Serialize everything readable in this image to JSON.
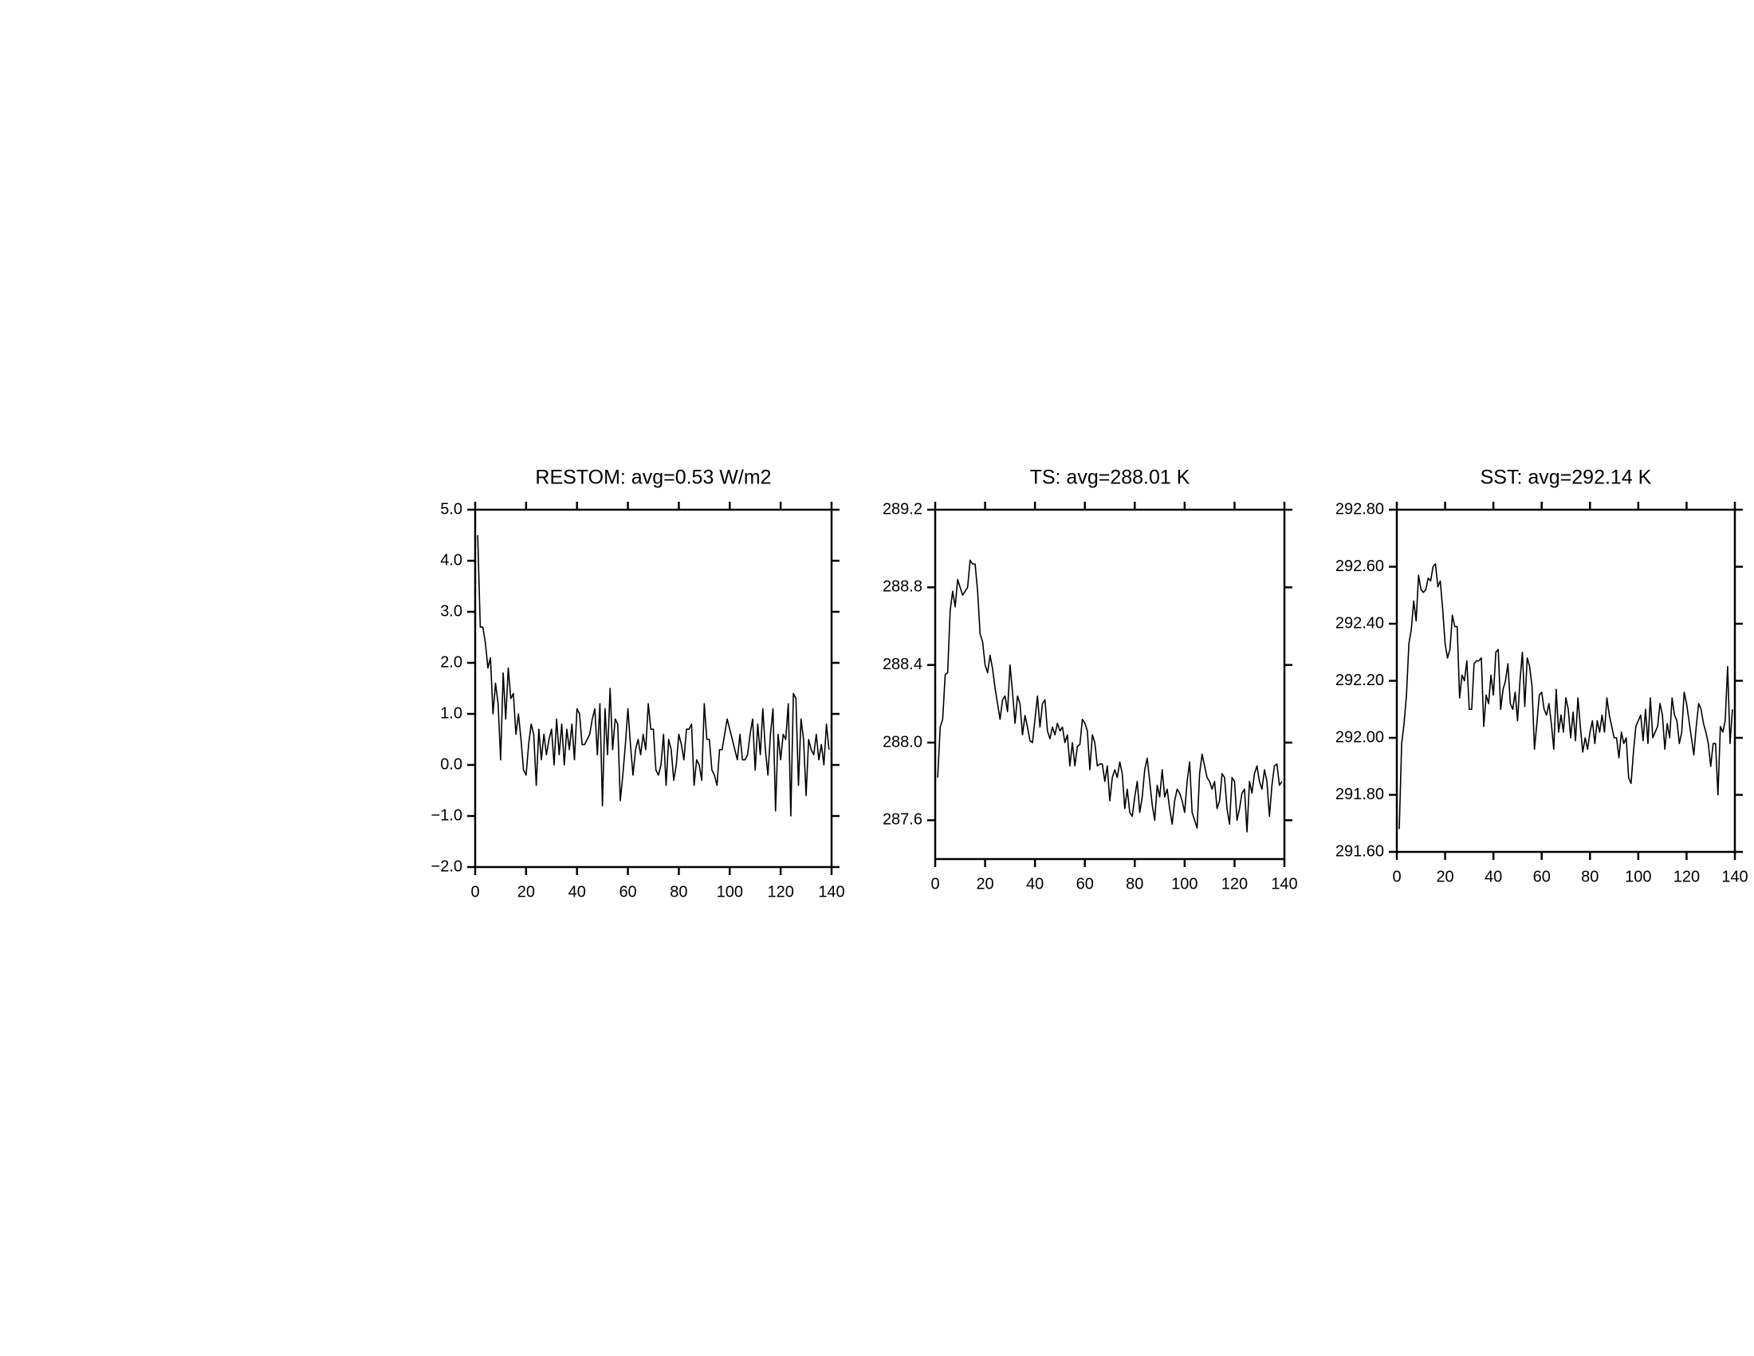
{
  "chart_data": [
    {
      "type": "line",
      "title": "RESTOM: avg=0.53 W/m2",
      "color": "#000000",
      "x": [
        1,
        2,
        3,
        4,
        5,
        6,
        7,
        8,
        9,
        10,
        11,
        12,
        13,
        14,
        15,
        16,
        17,
        18,
        19,
        20,
        21,
        22,
        23,
        24,
        25,
        26,
        27,
        28,
        29,
        30,
        31,
        32,
        33,
        34,
        35,
        36,
        37,
        38,
        39,
        40,
        41,
        42,
        43,
        44,
        45,
        46,
        47,
        48,
        49,
        50,
        51,
        52,
        53,
        54,
        55,
        56,
        57,
        58,
        59,
        60,
        61,
        62,
        63,
        64,
        65,
        66,
        67,
        68,
        69,
        70,
        71,
        72,
        73,
        74,
        75,
        76,
        77,
        78,
        79,
        80,
        81,
        82,
        83,
        84,
        85,
        86,
        87,
        88,
        89,
        90,
        91,
        92,
        93,
        94,
        95,
        96,
        97,
        98,
        99,
        100,
        101,
        102,
        103,
        104,
        105,
        106,
        107,
        108,
        109,
        110,
        111,
        112,
        113,
        114,
        115,
        116,
        117,
        118,
        119,
        120,
        121,
        122,
        123,
        124,
        125,
        126,
        127,
        128,
        129,
        130,
        131,
        132,
        133,
        134,
        135,
        136,
        137,
        138,
        139
      ],
      "values": [
        4.5,
        2.7,
        2.7,
        2.4,
        1.9,
        2.1,
        1.0,
        1.6,
        1.2,
        0.1,
        1.8,
        0.9,
        1.9,
        1.3,
        1.4,
        0.6,
        1.0,
        0.5,
        -0.1,
        -0.2,
        0.4,
        0.8,
        0.6,
        -0.4,
        0.7,
        0.1,
        0.6,
        0.2,
        0.5,
        0.7,
        0.0,
        0.9,
        0.2,
        0.8,
        0.0,
        0.7,
        0.3,
        0.8,
        0.1,
        1.1,
        1.0,
        0.4,
        0.4,
        0.5,
        0.6,
        0.9,
        1.1,
        0.2,
        1.2,
        -0.8,
        1.1,
        0.2,
        1.5,
        0.3,
        0.9,
        0.8,
        -0.7,
        -0.2,
        0.4,
        1.1,
        0.4,
        -0.2,
        0.3,
        0.5,
        0.2,
        0.6,
        0.3,
        1.2,
        0.7,
        0.7,
        -0.1,
        -0.2,
        0.0,
        0.6,
        -0.4,
        0.5,
        0.3,
        -0.3,
        0.0,
        0.6,
        0.4,
        0.1,
        0.7,
        0.7,
        0.8,
        -0.4,
        0.1,
        0.0,
        -0.3,
        1.2,
        0.5,
        0.5,
        -0.1,
        -0.2,
        -0.4,
        0.3,
        0.3,
        0.6,
        0.9,
        0.7,
        0.5,
        0.3,
        0.1,
        0.6,
        0.1,
        0.1,
        0.2,
        0.6,
        0.9,
        -0.1,
        0.8,
        0.2,
        1.1,
        0.3,
        -0.2,
        0.6,
        1.1,
        -0.9,
        0.6,
        0.1,
        0.6,
        0.5,
        1.2,
        -1.0,
        1.4,
        1.3,
        -0.4,
        0.9,
        0.5,
        -0.6,
        0.5,
        0.3,
        0.2,
        0.6,
        0.1,
        0.4,
        0.0,
        0.8,
        0.3
      ],
      "xlim": [
        0,
        140
      ],
      "xticks": [
        0,
        20,
        40,
        60,
        80,
        100,
        120,
        140
      ],
      "ylim": [
        -2,
        5
      ],
      "yticks": [
        {
          "value": 5,
          "label": "5.0"
        },
        {
          "value": 4,
          "label": "4.0"
        },
        {
          "value": 3,
          "label": "3.0"
        },
        {
          "value": 2,
          "label": "2.0"
        },
        {
          "value": 1,
          "label": "1.0"
        },
        {
          "value": 0,
          "label": "0.0"
        },
        {
          "value": -1,
          "label": "−1.0"
        },
        {
          "value": -2,
          "label": "−2.0"
        }
      ]
    },
    {
      "type": "line",
      "title": "TS: avg=288.01 K",
      "color": "#000000",
      "x": [
        1,
        2,
        3,
        4,
        5,
        6,
        7,
        8,
        9,
        10,
        11,
        12,
        13,
        14,
        15,
        16,
        17,
        18,
        19,
        20,
        21,
        22,
        23,
        24,
        25,
        26,
        27,
        28,
        29,
        30,
        31,
        32,
        33,
        34,
        35,
        36,
        37,
        38,
        39,
        40,
        41,
        42,
        43,
        44,
        45,
        46,
        47,
        48,
        49,
        50,
        51,
        52,
        53,
        54,
        55,
        56,
        57,
        58,
        59,
        60,
        61,
        62,
        63,
        64,
        65,
        66,
        67,
        68,
        69,
        70,
        71,
        72,
        73,
        74,
        75,
        76,
        77,
        78,
        79,
        80,
        81,
        82,
        83,
        84,
        85,
        86,
        87,
        88,
        89,
        90,
        91,
        92,
        93,
        94,
        95,
        96,
        97,
        98,
        99,
        100,
        101,
        102,
        103,
        104,
        105,
        106,
        107,
        108,
        109,
        110,
        111,
        112,
        113,
        114,
        115,
        116,
        117,
        118,
        119,
        120,
        121,
        122,
        123,
        124,
        125,
        126,
        127,
        128,
        129,
        130,
        131,
        132,
        133,
        134,
        135,
        136,
        137,
        138,
        139
      ],
      "values": [
        287.82,
        288.08,
        288.12,
        288.35,
        288.36,
        288.68,
        288.78,
        288.7,
        288.84,
        288.8,
        288.76,
        288.78,
        288.8,
        288.94,
        288.92,
        288.92,
        288.78,
        288.56,
        288.52,
        288.4,
        288.36,
        288.45,
        288.38,
        288.28,
        288.2,
        288.12,
        288.22,
        288.24,
        288.16,
        288.4,
        288.26,
        288.1,
        288.24,
        288.2,
        288.04,
        288.14,
        288.08,
        288.01,
        288.0,
        288.12,
        288.24,
        288.08,
        288.2,
        288.22,
        288.06,
        288.02,
        288.08,
        288.04,
        288.1,
        288.06,
        288.08,
        288.0,
        288.04,
        287.88,
        288.0,
        287.88,
        287.98,
        287.99,
        288.12,
        288.1,
        288.06,
        287.86,
        288.04,
        288.0,
        287.88,
        287.89,
        287.89,
        287.8,
        287.88,
        287.7,
        287.82,
        287.86,
        287.82,
        287.9,
        287.84,
        287.66,
        287.76,
        287.64,
        287.62,
        287.72,
        287.8,
        287.64,
        287.72,
        287.86,
        287.92,
        287.8,
        287.68,
        287.6,
        287.78,
        287.72,
        287.86,
        287.72,
        287.76,
        287.66,
        287.58,
        287.7,
        287.76,
        287.74,
        287.7,
        287.64,
        287.8,
        287.9,
        287.64,
        287.6,
        287.56,
        287.84,
        287.94,
        287.88,
        287.82,
        287.8,
        287.76,
        287.8,
        287.66,
        287.7,
        287.84,
        287.82,
        287.66,
        287.58,
        287.82,
        287.8,
        287.6,
        287.66,
        287.74,
        287.76,
        287.54,
        287.8,
        287.74,
        287.84,
        287.88,
        287.8,
        287.76,
        287.86,
        287.8,
        287.62,
        287.78,
        287.88,
        287.89,
        287.78,
        287.8
      ],
      "xlim": [
        0,
        140
      ],
      "xticks": [
        0,
        20,
        40,
        60,
        80,
        100,
        120,
        140
      ],
      "ylim": [
        287.4,
        289.2
      ],
      "yticks": [
        289.2,
        288.8,
        288.4,
        {
          "value": 288,
          "label": "288.0"
        },
        287.6
      ]
    },
    {
      "type": "line",
      "title": "SST: avg=292.14 K",
      "color": "#000000",
      "x": [
        1,
        2,
        3,
        4,
        5,
        6,
        7,
        8,
        9,
        10,
        11,
        12,
        13,
        14,
        15,
        16,
        17,
        18,
        19,
        20,
        21,
        22,
        23,
        24,
        25,
        26,
        27,
        28,
        29,
        30,
        31,
        32,
        33,
        34,
        35,
        36,
        37,
        38,
        39,
        40,
        41,
        42,
        43,
        44,
        45,
        46,
        47,
        48,
        49,
        50,
        51,
        52,
        53,
        54,
        55,
        56,
        57,
        58,
        59,
        60,
        61,
        62,
        63,
        64,
        65,
        66,
        67,
        68,
        69,
        70,
        71,
        72,
        73,
        74,
        75,
        76,
        77,
        78,
        79,
        80,
        81,
        82,
        83,
        84,
        85,
        86,
        87,
        88,
        89,
        90,
        91,
        92,
        93,
        94,
        95,
        96,
        97,
        98,
        99,
        100,
        101,
        102,
        103,
        104,
        105,
        106,
        107,
        108,
        109,
        110,
        111,
        112,
        113,
        114,
        115,
        116,
        117,
        118,
        119,
        120,
        121,
        122,
        123,
        124,
        125,
        126,
        127,
        128,
        129,
        130,
        131,
        132,
        133,
        134,
        135,
        136,
        137,
        138,
        139
      ],
      "values": [
        291.68,
        291.98,
        292.05,
        292.15,
        292.33,
        292.38,
        292.48,
        292.41,
        292.57,
        292.52,
        292.51,
        292.52,
        292.56,
        292.55,
        292.6,
        292.61,
        292.53,
        292.55,
        292.45,
        292.33,
        292.28,
        292.31,
        292.43,
        292.39,
        292.39,
        292.14,
        292.22,
        292.2,
        292.27,
        292.1,
        292.1,
        292.26,
        292.27,
        292.27,
        292.28,
        292.04,
        292.15,
        292.12,
        292.22,
        292.15,
        292.3,
        292.31,
        292.1,
        292.17,
        292.2,
        292.26,
        292.12,
        292.1,
        292.16,
        292.06,
        292.2,
        292.3,
        292.11,
        292.28,
        292.25,
        292.18,
        291.96,
        292.05,
        292.15,
        292.16,
        292.1,
        292.08,
        292.12,
        292.05,
        291.96,
        292.17,
        292.02,
        292.08,
        292.02,
        292.14,
        292.1,
        292.0,
        292.09,
        291.99,
        292.14,
        292.04,
        291.95,
        292.0,
        291.96,
        292.02,
        292.06,
        291.98,
        292.06,
        292.02,
        292.08,
        292.02,
        292.14,
        292.08,
        292.04,
        292.0,
        292.0,
        291.93,
        292.02,
        291.98,
        292.0,
        291.86,
        291.84,
        291.95,
        292.04,
        292.06,
        292.08,
        291.99,
        292.1,
        291.98,
        292.14,
        292.0,
        292.02,
        292.04,
        292.12,
        292.08,
        291.96,
        292.05,
        292.0,
        292.14,
        292.08,
        292.06,
        291.98,
        292.02,
        292.16,
        292.12,
        292.06,
        292.0,
        291.94,
        292.04,
        292.12,
        292.1,
        292.05,
        292.02,
        291.98,
        291.9,
        291.98,
        291.98,
        291.8,
        292.04,
        292.02,
        292.06,
        292.25,
        291.98,
        292.1
      ],
      "xlim": [
        0,
        140
      ],
      "xticks": [
        0,
        20,
        40,
        60,
        80,
        100,
        120,
        140
      ],
      "ylim": [
        291.6,
        292.8
      ],
      "yticks": [
        {
          "value": 292.8,
          "label": "292.80"
        },
        {
          "value": 292.6,
          "label": "292.60"
        },
        {
          "value": 292.4,
          "label": "292.40"
        },
        {
          "value": 292.2,
          "label": "292.20"
        },
        {
          "value": 292,
          "label": "292.00"
        },
        {
          "value": 291.8,
          "label": "291.80"
        },
        {
          "value": 291.6,
          "label": "291.60"
        }
      ]
    }
  ]
}
